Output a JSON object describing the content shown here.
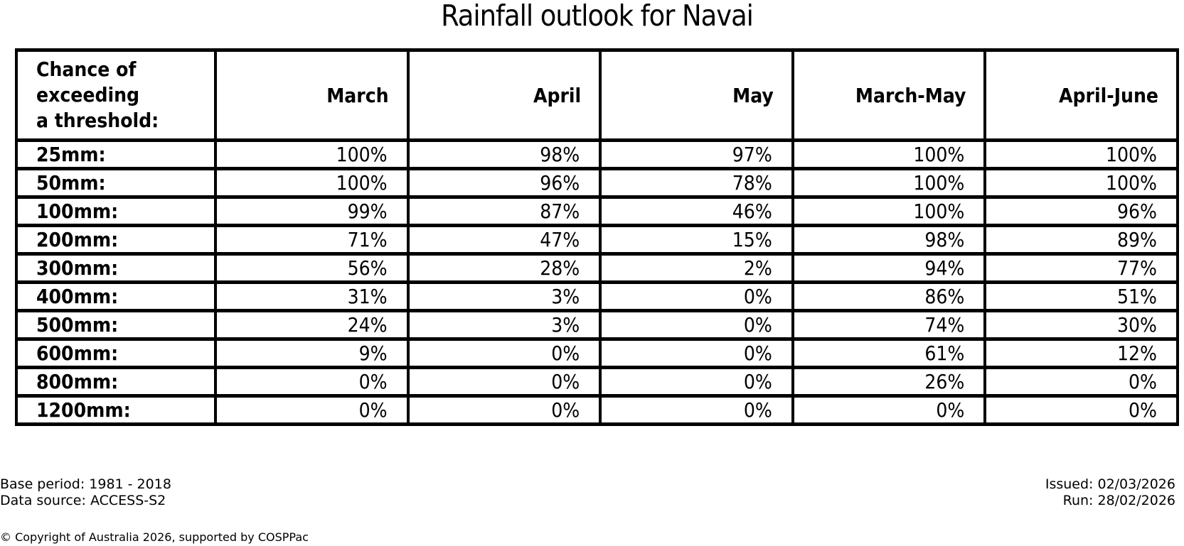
{
  "title": "Rainfall outlook for Navai",
  "chart_data": {
    "type": "table",
    "title": "Rainfall outlook for Navai",
    "corner_header": "Chance of\nexceeding\na threshold:",
    "units": "percent chance of exceeding rainfall threshold",
    "columns": [
      "March",
      "April",
      "May",
      "March-May",
      "April-June"
    ],
    "rows": [
      {
        "threshold": "25mm:",
        "values_pct": [
          100,
          98,
          97,
          100,
          100
        ]
      },
      {
        "threshold": "50mm:",
        "values_pct": [
          100,
          96,
          78,
          100,
          100
        ]
      },
      {
        "threshold": "100mm:",
        "values_pct": [
          99,
          87,
          46,
          100,
          96
        ]
      },
      {
        "threshold": "200mm:",
        "values_pct": [
          71,
          47,
          15,
          98,
          89
        ]
      },
      {
        "threshold": "300mm:",
        "values_pct": [
          56,
          28,
          2,
          94,
          77
        ]
      },
      {
        "threshold": "400mm:",
        "values_pct": [
          31,
          3,
          0,
          86,
          51
        ]
      },
      {
        "threshold": "500mm:",
        "values_pct": [
          24,
          3,
          0,
          74,
          30
        ]
      },
      {
        "threshold": "600mm:",
        "values_pct": [
          9,
          0,
          0,
          61,
          12
        ]
      },
      {
        "threshold": "800mm:",
        "values_pct": [
          0,
          0,
          0,
          26,
          0
        ]
      },
      {
        "threshold": "1200mm:",
        "values_pct": [
          0,
          0,
          0,
          0,
          0
        ]
      }
    ]
  },
  "footer": {
    "base_period": "Base period: 1981 - 2018",
    "data_source": "Data source: ACCESS-S2",
    "issued": "Issued: 02/03/2026",
    "run": "Run: 28/02/2026",
    "copyright": "© Copyright of Australia 2026, supported by COSPPac"
  },
  "colors": {
    "text": "#000000",
    "background": "#ffffff",
    "table_border": "#000000"
  }
}
